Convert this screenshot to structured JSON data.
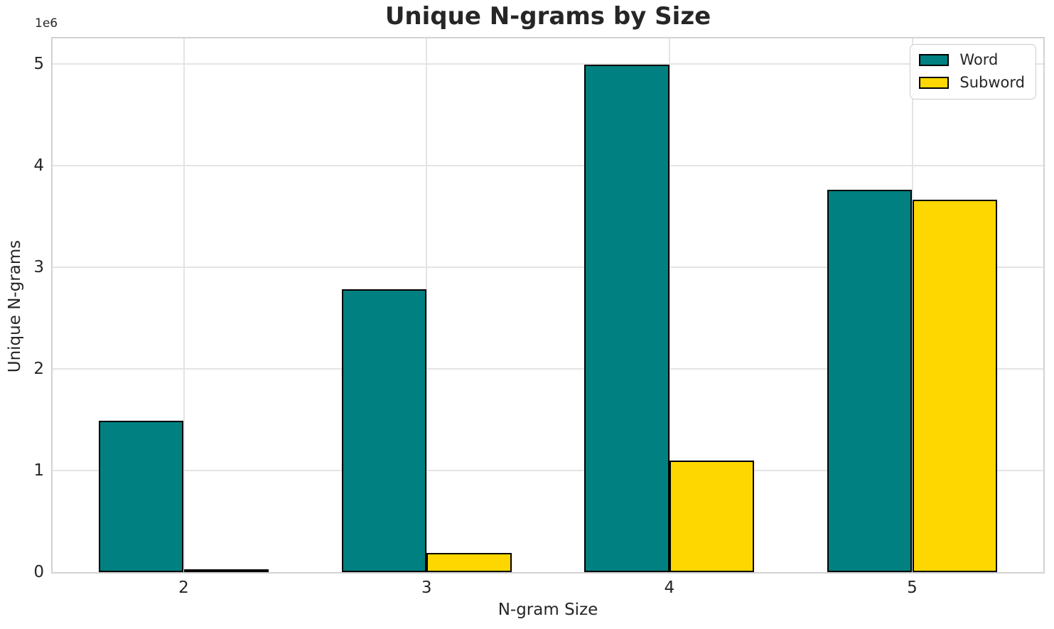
{
  "chart_data": {
    "type": "bar",
    "title": "Unique N-grams by Size",
    "xlabel": "N-gram Size",
    "ylabel": "Unique N-grams",
    "y_offset_label": "1e6",
    "x": [
      2,
      3,
      4,
      5
    ],
    "categories": [
      "2",
      "3",
      "4",
      "5"
    ],
    "series": [
      {
        "name": "Word",
        "color": "#008080",
        "values": [
          1490000,
          2780000,
          4990000,
          3760000
        ]
      },
      {
        "name": "Subword",
        "color": "#FFD700",
        "values": [
          30000,
          190000,
          1100000,
          3660000
        ]
      }
    ],
    "bar_width": 0.35,
    "bar_edge_color": "#000000",
    "xlim": [
      1.46,
      5.54
    ],
    "ylim": [
      0,
      5250000
    ],
    "yticks": [
      0,
      1000000,
      2000000,
      3000000,
      4000000,
      5000000
    ],
    "ytick_labels": [
      "0",
      "1",
      "2",
      "3",
      "4",
      "5"
    ],
    "grid": true,
    "legend_position": "upper right"
  },
  "style": {
    "accent_teal": "#008080",
    "accent_gold": "#FFD700",
    "text_color": "#262626",
    "grid_color": "#e4e4e4",
    "spine_color": "#d2d2d2",
    "background": "#ffffff"
  }
}
